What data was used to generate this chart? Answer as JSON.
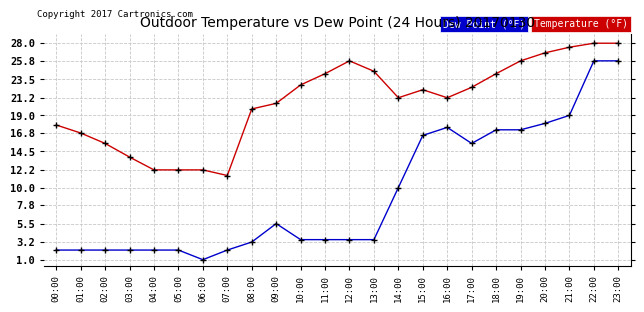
{
  "title": "Outdoor Temperature vs Dew Point (24 Hours) 20170130",
  "copyright": "Copyright 2017 Cartronics.com",
  "background_color": "#ffffff",
  "grid_color": "#c8c8c8",
  "hours": [
    0,
    1,
    2,
    3,
    4,
    5,
    6,
    7,
    8,
    9,
    10,
    11,
    12,
    13,
    14,
    15,
    16,
    17,
    18,
    19,
    20,
    21,
    22,
    23
  ],
  "temperature": [
    17.8,
    16.8,
    15.5,
    13.8,
    12.2,
    12.2,
    12.2,
    11.5,
    19.8,
    20.5,
    22.8,
    24.2,
    25.8,
    24.5,
    21.2,
    22.2,
    21.2,
    22.5,
    24.2,
    25.8,
    26.8,
    27.5,
    28.0,
    28.0
  ],
  "dewpoint": [
    2.2,
    2.2,
    2.2,
    2.2,
    2.2,
    2.2,
    1.0,
    2.2,
    3.2,
    5.5,
    3.5,
    3.5,
    3.5,
    3.5,
    10.0,
    16.5,
    17.5,
    15.5,
    17.2,
    17.2,
    18.0,
    19.0,
    25.8,
    25.8
  ],
  "temp_color": "#cc0000",
  "dew_color": "#0000cc",
  "yticks": [
    1.0,
    3.2,
    5.5,
    7.8,
    10.0,
    12.2,
    14.5,
    16.8,
    19.0,
    21.2,
    23.5,
    25.8,
    28.0
  ],
  "ymin": 0.2,
  "ymax": 29.2,
  "legend_dew_label": "Dew Point (°F)",
  "legend_temp_label": "Temperature (°F)",
  "legend_dew_bg": "#0000cc",
  "legend_temp_bg": "#cc0000",
  "legend_text_color": "#ffffff"
}
